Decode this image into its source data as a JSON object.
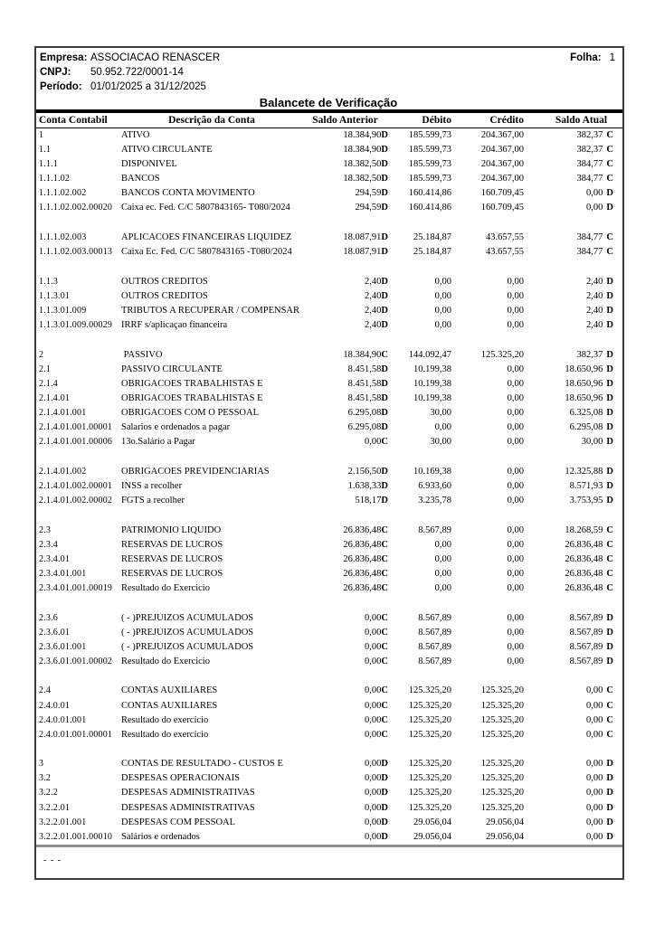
{
  "header": {
    "empresa_label": "Empresa:",
    "empresa_value": "ASSOCIACAO RENASCER",
    "folha_label": "Folha:",
    "folha_value": "1",
    "cnpj_label": "CNPJ:",
    "cnpj_value": "50.952.722/0001-14",
    "periodo_label": "Período:",
    "periodo_value": "01/01/2025 a 31/12/2025",
    "title": "Balancete de Verificação"
  },
  "table": {
    "columns": [
      "Conta Contabil",
      "Descrição da Conta",
      "Saldo Anterior",
      "Débito",
      "Crédito",
      "Saldo Atual"
    ],
    "rows": [
      {
        "conta": "1",
        "desc": "ATIVO",
        "prev": "18.384,90",
        "prev_s": "D",
        "deb": "185.599,73",
        "cred": "204.367,00",
        "cur": "382,37",
        "cur_s": "C"
      },
      {
        "conta": "1.1",
        "desc": "ATIVO CIRCULANTE",
        "prev": "18.384,90",
        "prev_s": "D",
        "deb": "185.599,73",
        "cred": "204.367,00",
        "cur": "382,37",
        "cur_s": "C"
      },
      {
        "conta": "1.1.1",
        "desc": "DISPONIVEL",
        "prev": "18.382,50",
        "prev_s": "D",
        "deb": "185.599,73",
        "cred": "204.367,00",
        "cur": "384,77",
        "cur_s": "C"
      },
      {
        "conta": "1.1.1.02",
        "desc": "BANCOS",
        "prev": "18.382,50",
        "prev_s": "D",
        "deb": "185.599,73",
        "cred": "204.367,00",
        "cur": "384,77",
        "cur_s": "C"
      },
      {
        "conta": "1.1.1.02.002",
        "desc": "BANCOS CONTA MOVIMENTO",
        "prev": "294,59",
        "prev_s": "D",
        "deb": "160.414,86",
        "cred": "160.709,45",
        "cur": "0,00",
        "cur_s": "D"
      },
      {
        "conta": "1.1.1.02.002.00020",
        "desc": "Caixa ec. Fed. C/C 5807843165- T080/2024",
        "prev": "294,59",
        "prev_s": "D",
        "deb": "160.414,86",
        "cred": "160.709,45",
        "cur": "0,00",
        "cur_s": "D"
      },
      {
        "blank": true
      },
      {
        "conta": "1.1.1.02.003",
        "desc": "APLICACOES FINANCEIRAS LIQUIDEZ",
        "prev": "18.087,91",
        "prev_s": "D",
        "deb": "25.184,87",
        "cred": "43.657,55",
        "cur": "384,77",
        "cur_s": "C"
      },
      {
        "conta": "1.1.1.02.003.00013",
        "desc": "Caixa Ec. Fed. C/C 5807843165 -T080/2024",
        "prev": "18.087,91",
        "prev_s": "D",
        "deb": "25.184,87",
        "cred": "43.657,55",
        "cur": "384,77",
        "cur_s": "C"
      },
      {
        "blank": true
      },
      {
        "conta": "1.1.3",
        "desc": "OUTROS CREDITOS",
        "prev": "2,40",
        "prev_s": "D",
        "deb": "0,00",
        "cred": "0,00",
        "cur": "2,40",
        "cur_s": "D"
      },
      {
        "conta": "1.1.3.01",
        "desc": "OUTROS CREDITOS",
        "prev": "2,40",
        "prev_s": "D",
        "deb": "0,00",
        "cred": "0,00",
        "cur": "2,40",
        "cur_s": "D"
      },
      {
        "conta": "1.1.3.01.009",
        "desc": "TRIBUTOS A RECUPERAR / COMPENSAR",
        "prev": "2,40",
        "prev_s": "D",
        "deb": "0,00",
        "cred": "0,00",
        "cur": "2,40",
        "cur_s": "D"
      },
      {
        "conta": "1.1.3.01.009.00029",
        "desc": "IRRF s/aplicaçao financeira",
        "prev": "2,40",
        "prev_s": "D",
        "deb": "0,00",
        "cred": "0,00",
        "cur": "2,40",
        "cur_s": "D"
      },
      {
        "blank": true
      },
      {
        "conta": "2",
        "desc": " PASSIVO",
        "prev": "18.384,90",
        "prev_s": "C",
        "deb": "144.092,47",
        "cred": "125.325,20",
        "cur": "382,37",
        "cur_s": "D"
      },
      {
        "conta": "2.1",
        "desc": "PASSIVO CIRCULANTE",
        "prev": "8.451,58",
        "prev_s": "D",
        "deb": "10.199,38",
        "cred": "0,00",
        "cur": "18.650,96",
        "cur_s": "D"
      },
      {
        "conta": "2.1.4",
        "desc": "OBRIGACOES TRABALHISTAS E",
        "prev": "8.451,58",
        "prev_s": "D",
        "deb": "10.199,38",
        "cred": "0,00",
        "cur": "18.650,96",
        "cur_s": "D"
      },
      {
        "conta": "2.1.4.01",
        "desc": "OBRIGACOES TRABALHISTAS E",
        "prev": "8.451,58",
        "prev_s": "D",
        "deb": "10.199,38",
        "cred": "0,00",
        "cur": "18.650,96",
        "cur_s": "D"
      },
      {
        "conta": "2.1.4.01.001",
        "desc": "OBRIGACOES COM O PESSOAL",
        "prev": "6.295,08",
        "prev_s": "D",
        "deb": "30,00",
        "cred": "0,00",
        "cur": "6.325,08",
        "cur_s": "D"
      },
      {
        "conta": "2.1.4.01.001.00001",
        "desc": "Salarios e ordenados a pagar",
        "prev": "6.295,08",
        "prev_s": "D",
        "deb": "0,00",
        "cred": "0,00",
        "cur": "6.295,08",
        "cur_s": "D"
      },
      {
        "conta": "2.1.4.01.001.00006",
        "desc": "13o.Salário a Pagar",
        "prev": "0,00",
        "prev_s": "C",
        "deb": "30,00",
        "cred": "0,00",
        "cur": "30,00",
        "cur_s": "D"
      },
      {
        "blank": true
      },
      {
        "conta": "2.1.4.01.002",
        "desc": "OBRIGACOES PREVIDENCIARIAS",
        "prev": "2.156,50",
        "prev_s": "D",
        "deb": "10.169,38",
        "cred": "0,00",
        "cur": "12.325,88",
        "cur_s": "D"
      },
      {
        "conta": "2.1.4.01.002.00001",
        "desc": "INSS a recolher",
        "prev": "1.638,33",
        "prev_s": "D",
        "deb": "6.933,60",
        "cred": "0,00",
        "cur": "8.571,93",
        "cur_s": "D"
      },
      {
        "conta": "2.1.4.01.002.00002",
        "desc": "FGTS a recolher",
        "prev": "518,17",
        "prev_s": "D",
        "deb": "3.235,78",
        "cred": "0,00",
        "cur": "3.753,95",
        "cur_s": "D"
      },
      {
        "blank": true
      },
      {
        "conta": "2.3",
        "desc": "PATRIMONIO LIQUIDO",
        "prev": "26.836,48",
        "prev_s": "C",
        "deb": "8.567,89",
        "cred": "0,00",
        "cur": "18.268,59",
        "cur_s": "C"
      },
      {
        "conta": "2.3.4",
        "desc": "RESERVAS DE LUCROS",
        "prev": "26.836,48",
        "prev_s": "C",
        "deb": "0,00",
        "cred": "0,00",
        "cur": "26.836,48",
        "cur_s": "C"
      },
      {
        "conta": "2.3.4.01",
        "desc": "RESERVAS DE LUCROS",
        "prev": "26.836,48",
        "prev_s": "C",
        "deb": "0,00",
        "cred": "0,00",
        "cur": "26.836,48",
        "cur_s": "C"
      },
      {
        "conta": "2.3.4.01.001",
        "desc": "RESERVAS DE LUCROS",
        "prev": "26.836,48",
        "prev_s": "C",
        "deb": "0,00",
        "cred": "0,00",
        "cur": "26.836,48",
        "cur_s": "C"
      },
      {
        "conta": "2.3.4.01.001.00019",
        "desc": "Resultado do Exercicio",
        "prev": "26.836,48",
        "prev_s": "C",
        "deb": "0,00",
        "cred": "0,00",
        "cur": "26.836,48",
        "cur_s": "C"
      },
      {
        "blank": true
      },
      {
        "conta": "2.3.6",
        "desc": "( - )PREJUIZOS ACUMULADOS",
        "prev": "0,00",
        "prev_s": "C",
        "deb": "8.567,89",
        "cred": "0,00",
        "cur": "8.567,89",
        "cur_s": "D"
      },
      {
        "conta": "2.3.6.01",
        "desc": "( - )PREJUIZOS ACUMULADOS",
        "prev": "0,00",
        "prev_s": "C",
        "deb": "8.567,89",
        "cred": "0,00",
        "cur": "8.567,89",
        "cur_s": "D"
      },
      {
        "conta": "2.3.6.01.001",
        "desc": "( - )PREJUIZOS ACUMULADOS",
        "prev": "0,00",
        "prev_s": "C",
        "deb": "8.567,89",
        "cred": "0,00",
        "cur": "8.567,89",
        "cur_s": "D"
      },
      {
        "conta": "2.3.6.01.001.00002",
        "desc": "Resultado do Exercicio",
        "prev": "0,00",
        "prev_s": "C",
        "deb": "8.567,89",
        "cred": "0,00",
        "cur": "8.567,89",
        "cur_s": "D"
      },
      {
        "blank": true
      },
      {
        "conta": "2.4",
        "desc": "CONTAS AUXILIARES",
        "prev": "0,00",
        "prev_s": "C",
        "deb": "125.325,20",
        "cred": "125.325,20",
        "cur": "0,00",
        "cur_s": "C"
      },
      {
        "conta": "2.4.0.01",
        "desc": "CONTAS AUXILIARES",
        "prev": "0,00",
        "prev_s": "C",
        "deb": "125.325,20",
        "cred": "125.325,20",
        "cur": "0,00",
        "cur_s": "C"
      },
      {
        "conta": "2.4.0.01.001",
        "desc": "Resultado do exercício",
        "prev": "0,00",
        "prev_s": "C",
        "deb": "125.325,20",
        "cred": "125.325,20",
        "cur": "0,00",
        "cur_s": "C"
      },
      {
        "conta": "2.4.0.01.001.00001",
        "desc": "Resultado do exercício",
        "prev": "0,00",
        "prev_s": "C",
        "deb": "125.325,20",
        "cred": "125.325,20",
        "cur": "0,00",
        "cur_s": "C"
      },
      {
        "blank": true
      },
      {
        "conta": "3",
        "desc": "CONTAS DE RESULTADO - CUSTOS E",
        "prev": "0,00",
        "prev_s": "D",
        "deb": "125.325,20",
        "cred": "125.325,20",
        "cur": "0,00",
        "cur_s": "D"
      },
      {
        "conta": "3.2",
        "desc": "DESPESAS OPERACIONAIS",
        "prev": "0,00",
        "prev_s": "D",
        "deb": "125.325,20",
        "cred": "125.325,20",
        "cur": "0,00",
        "cur_s": "D"
      },
      {
        "conta": "3.2.2",
        "desc": "DESPESAS ADMINISTRATIVAS",
        "prev": "0,00",
        "prev_s": "D",
        "deb": "125.325,20",
        "cred": "125.325,20",
        "cur": "0,00",
        "cur_s": "D"
      },
      {
        "conta": "3.2.2.01",
        "desc": "DESPESAS ADMINISTRATIVAS",
        "prev": "0,00",
        "prev_s": "D",
        "deb": "125.325,20",
        "cred": "125.325,20",
        "cur": "0,00",
        "cur_s": "D"
      },
      {
        "conta": "3.2.2.01.001",
        "desc": "DESPESAS COM PESSOAL",
        "prev": "0,00",
        "prev_s": "D",
        "deb": "29.056,04",
        "cred": "29.056,04",
        "cur": "0,00",
        "cur_s": "D"
      },
      {
        "conta": "3.2.2.01.001.00010",
        "desc": "Salários e ordenados",
        "prev": "0,00",
        "prev_s": "D",
        "deb": "29.056,04",
        "cred": "29.056,04",
        "cur": "0,00",
        "cur_s": "D"
      }
    ]
  },
  "footer": {
    "text": "- - -"
  }
}
